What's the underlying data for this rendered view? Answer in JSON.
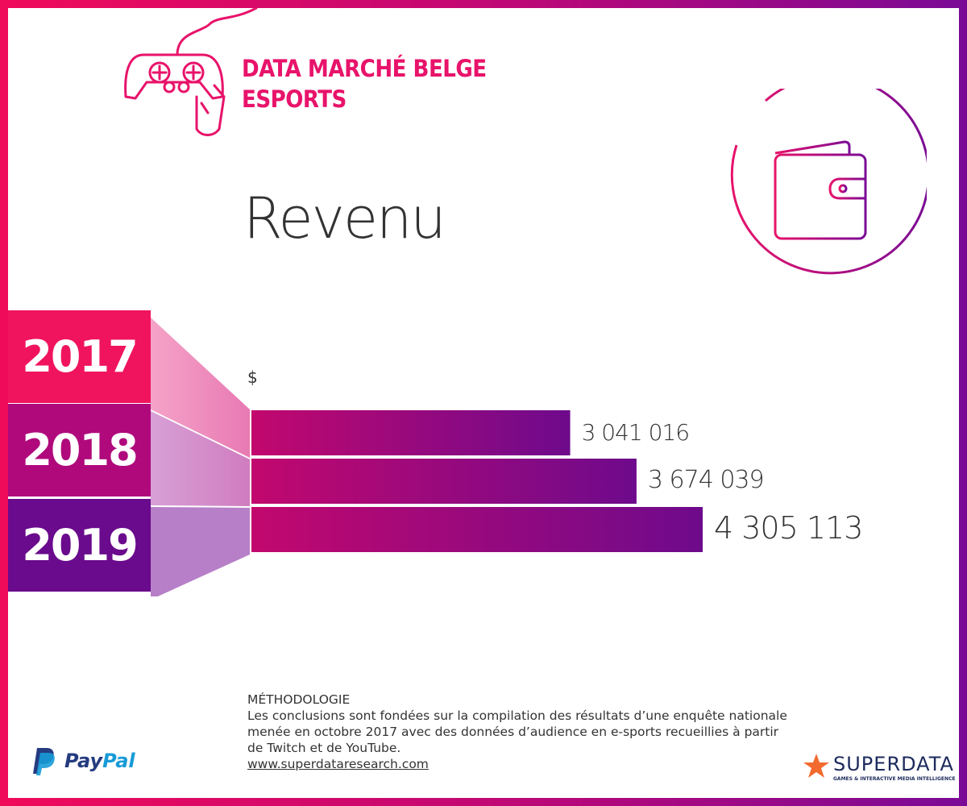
{
  "header": {
    "line1": "DATA MARCHÉ BELGE",
    "line2": "ESPORTS"
  },
  "main_title": "Revenu",
  "icons": [
    "gamepad-icon",
    "wallet-icon",
    "paypal-icon",
    "superdata-star-icon"
  ],
  "colors": {
    "accent": "#e8136a",
    "year_2017": "#f0145e",
    "year_2018": "#b0097c",
    "year_2019": "#6a0a8c",
    "bar_start": "#c2086e",
    "bar_end": "#6e0a8c",
    "ribbon_pink": "#ec8fbd",
    "ribbon_mid": "#d47cc3",
    "ribbon_purple": "#b47cc7"
  },
  "chart_data": {
    "type": "bar",
    "orientation": "horizontal",
    "title": "Revenu",
    "unit": "$",
    "categories": [
      "2017",
      "2018",
      "2019"
    ],
    "values": [
      3041016,
      3674039,
      4305113
    ],
    "value_labels": [
      "3 041 016",
      "3 674 039",
      "4 305 113"
    ],
    "xlim": [
      0,
      4305113
    ],
    "grid": false,
    "legend": "none"
  },
  "methodology": {
    "heading": "MÉTHODOLOGIE",
    "text": "Les conclusions sont fondées sur la compilation des résultats d’une enquête nationale menée en octobre 2017 avec des données d’audience en e-sports recueillies à partir de Twitch et de YouTube.",
    "link": "www.superdataresearch.com"
  },
  "footer": {
    "paypal": "PayPal",
    "superdata": "SUPERDATA",
    "superdata_tagline": "GAMES & INTERACTIVE MEDIA INTELLIGENCE"
  }
}
